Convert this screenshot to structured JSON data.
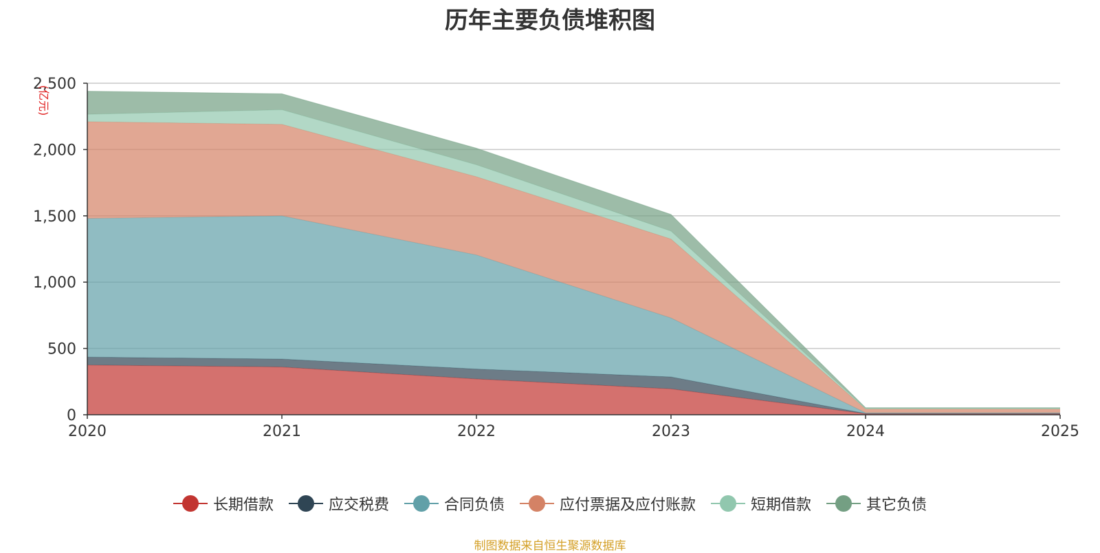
{
  "chart_data": {
    "type": "area",
    "stacked": true,
    "title": "历年主要负债堆积图",
    "ylabel": "(亿元)",
    "xlabel": "",
    "x": [
      "2020",
      "2021",
      "2022",
      "2023",
      "2024",
      "2025"
    ],
    "ylim": [
      0,
      2500
    ],
    "yticks": [
      "0",
      "500",
      "1,000",
      "1,500",
      "2,000",
      "2,500"
    ],
    "grid": true,
    "legend_position": "bottom",
    "series": [
      {
        "name": "长期借款",
        "color": "#c23531",
        "values": [
          375,
          360,
          270,
          195,
          8,
          8
        ]
      },
      {
        "name": "应交税费",
        "color": "#2f4554",
        "values": [
          60,
          60,
          75,
          90,
          2,
          2
        ]
      },
      {
        "name": "合同负债",
        "color": "#61a0a8",
        "values": [
          1045,
          1080,
          860,
          445,
          5,
          5
        ]
      },
      {
        "name": "应付票据及应付账款",
        "color": "#d48265",
        "values": [
          730,
          690,
          590,
          595,
          28,
          28
        ]
      },
      {
        "name": "短期借款",
        "color": "#91c7ae",
        "values": [
          55,
          110,
          90,
          60,
          5,
          5
        ]
      },
      {
        "name": "其它负债",
        "color": "#749f83",
        "values": [
          175,
          120,
          125,
          125,
          5,
          5
        ]
      }
    ]
  },
  "source_text": "制图数据来自恒生聚源数据库"
}
